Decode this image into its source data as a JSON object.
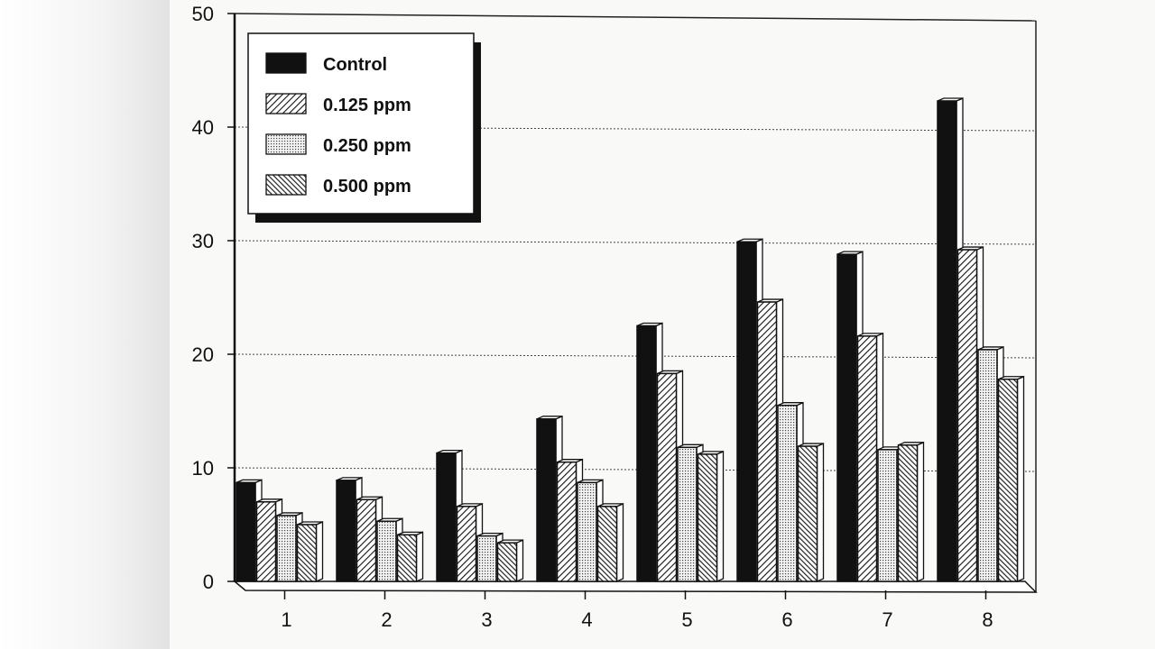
{
  "chart_data": {
    "type": "bar",
    "title": "",
    "xlabel": "",
    "ylabel": "",
    "ylim": [
      0,
      50
    ],
    "yticks": [
      "0",
      "10",
      "20",
      "30",
      "40",
      "50"
    ],
    "categories": [
      "1",
      "2",
      "3",
      "4",
      "5",
      "6",
      "7",
      "8"
    ],
    "series": [
      {
        "name": "Control",
        "pattern": "solid",
        "values": [
          8.7,
          8.9,
          11.3,
          14.3,
          22.5,
          29.9,
          28.8,
          42.3
        ]
      },
      {
        "name": "0.125 ppm",
        "pattern": "hatch",
        "values": [
          7.0,
          7.2,
          6.6,
          10.5,
          18.3,
          24.6,
          21.6,
          29.2
        ]
      },
      {
        "name": "0.250 ppm",
        "pattern": "dots",
        "values": [
          5.8,
          5.3,
          4.0,
          8.7,
          11.8,
          15.5,
          11.6,
          20.4
        ]
      },
      {
        "name": "0.500 ppm",
        "pattern": "hatch2",
        "values": [
          5.0,
          4.1,
          3.4,
          6.6,
          11.2,
          11.9,
          12.0,
          17.8
        ]
      }
    ],
    "grid": true,
    "legend_position": "top-left",
    "colors": {
      "solid": "#111111",
      "outline": "#111111",
      "background": "#f9f9f7"
    }
  }
}
